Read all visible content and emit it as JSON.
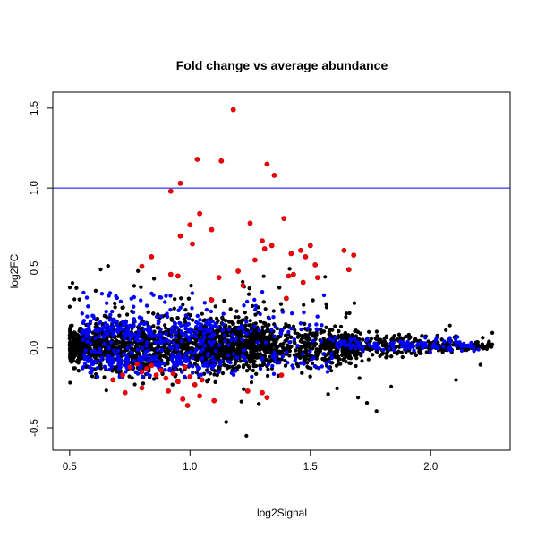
{
  "chart_data": {
    "type": "scatter",
    "title": "Fold change vs average abundance",
    "xlabel": "log2Signal",
    "ylabel": "log2FC",
    "xlim": [
      0.43,
      2.33
    ],
    "ylim": [
      -0.64,
      1.6
    ],
    "xticks": [
      "0.5",
      "1.0",
      "1.5",
      "2.0"
    ],
    "yticks": [
      "-0.5",
      "0.0",
      "0.5",
      "1.0",
      "1.5"
    ],
    "hline": {
      "y": 1.0,
      "color": "#0000ff"
    },
    "grid": false,
    "legend": "none",
    "colors": {
      "points": "#000000",
      "highlight_blue": "#0000ff",
      "highlight_red": "#ff0000",
      "red_outline": "#b00010"
    },
    "background_cloud": {
      "description": "dense MA cloud of black points",
      "x_range": [
        0.47,
        2.26
      ],
      "y_center": 0.0,
      "n_points_approx": 4500
    },
    "red_points": [
      {
        "x": 1.18,
        "y": 1.49
      },
      {
        "x": 1.03,
        "y": 1.18
      },
      {
        "x": 1.13,
        "y": 1.17
      },
      {
        "x": 1.32,
        "y": 1.15
      },
      {
        "x": 1.35,
        "y": 1.08
      },
      {
        "x": 0.96,
        "y": 1.03
      },
      {
        "x": 0.92,
        "y": 0.98
      },
      {
        "x": 1.04,
        "y": 0.84
      },
      {
        "x": 1.39,
        "y": 0.81
      },
      {
        "x": 1.25,
        "y": 0.78
      },
      {
        "x": 1.0,
        "y": 0.77
      },
      {
        "x": 1.09,
        "y": 0.74
      },
      {
        "x": 0.96,
        "y": 0.7
      },
      {
        "x": 1.3,
        "y": 0.67
      },
      {
        "x": 1.34,
        "y": 0.64
      },
      {
        "x": 1.31,
        "y": 0.62
      },
      {
        "x": 1.01,
        "y": 0.65
      },
      {
        "x": 1.5,
        "y": 0.64
      },
      {
        "x": 1.46,
        "y": 0.61
      },
      {
        "x": 1.42,
        "y": 0.59
      },
      {
        "x": 1.48,
        "y": 0.57
      },
      {
        "x": 1.64,
        "y": 0.61
      },
      {
        "x": 1.68,
        "y": 0.58
      },
      {
        "x": 1.27,
        "y": 0.55
      },
      {
        "x": 1.66,
        "y": 0.49
      },
      {
        "x": 1.52,
        "y": 0.52
      },
      {
        "x": 1.43,
        "y": 0.46
      },
      {
        "x": 1.41,
        "y": 0.45
      },
      {
        "x": 1.47,
        "y": 0.41
      },
      {
        "x": 1.53,
        "y": 0.44
      },
      {
        "x": 0.84,
        "y": 0.57
      },
      {
        "x": 0.8,
        "y": 0.51
      },
      {
        "x": 0.92,
        "y": 0.46
      },
      {
        "x": 0.95,
        "y": 0.45
      },
      {
        "x": 1.12,
        "y": 0.44
      },
      {
        "x": 1.2,
        "y": 0.48
      },
      {
        "x": 1.22,
        "y": 0.39
      },
      {
        "x": 1.4,
        "y": 0.31
      },
      {
        "x": 1.09,
        "y": 0.3
      },
      {
        "x": 0.72,
        "y": -0.17
      },
      {
        "x": 0.75,
        "y": -0.12
      },
      {
        "x": 0.78,
        "y": -0.1
      },
      {
        "x": 0.8,
        "y": -0.15
      },
      {
        "x": 0.82,
        "y": -0.13
      },
      {
        "x": 0.84,
        "y": -0.11
      },
      {
        "x": 0.86,
        "y": -0.17
      },
      {
        "x": 0.88,
        "y": -0.14
      },
      {
        "x": 0.9,
        "y": -0.19
      },
      {
        "x": 0.93,
        "y": -0.16
      },
      {
        "x": 0.95,
        "y": -0.21
      },
      {
        "x": 0.98,
        "y": -0.12
      },
      {
        "x": 1.0,
        "y": -0.18
      },
      {
        "x": 1.02,
        "y": -0.23
      },
      {
        "x": 1.05,
        "y": -0.2
      },
      {
        "x": 0.73,
        "y": -0.28
      },
      {
        "x": 0.8,
        "y": -0.25
      },
      {
        "x": 0.91,
        "y": -0.27
      },
      {
        "x": 0.97,
        "y": -0.32
      },
      {
        "x": 0.99,
        "y": -0.36
      },
      {
        "x": 1.04,
        "y": -0.3
      },
      {
        "x": 1.1,
        "y": -0.33
      },
      {
        "x": 1.24,
        "y": -0.27
      },
      {
        "x": 1.3,
        "y": -0.28
      },
      {
        "x": 1.32,
        "y": -0.31
      },
      {
        "x": 1.38,
        "y": -0.17
      },
      {
        "x": 0.68,
        "y": -0.2
      }
    ],
    "blue_points_summary": {
      "description": "blue highlighted points scattered within the main cloud, densest at x 0.6-1.1",
      "x_range": [
        0.55,
        2.2
      ],
      "y_range": [
        -0.18,
        0.36
      ],
      "n_points_approx": 700
    }
  }
}
